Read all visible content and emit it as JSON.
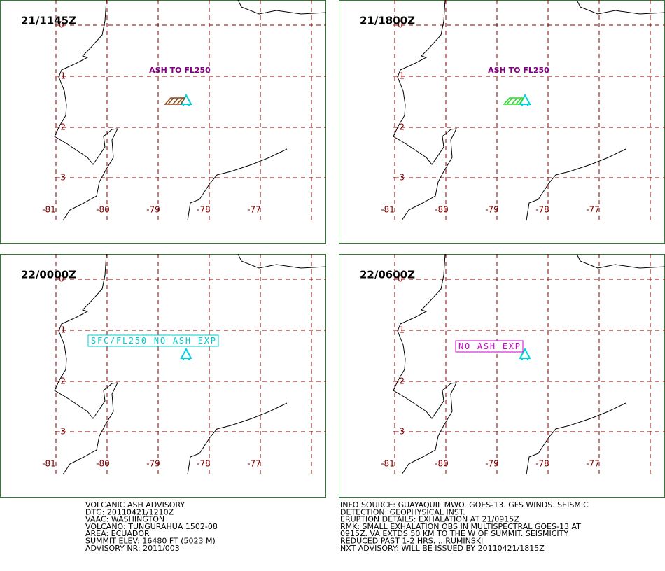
{
  "panels": [
    {
      "time": "21/1145Z",
      "annotation": "ASH TO FL250"
    },
    {
      "time": "21/1800Z",
      "annotation": "ASH TO FL250"
    },
    {
      "time": "22/0000Z",
      "annotation": "SFC/FL250 NO ASH EXP"
    },
    {
      "time": "22/0600Z",
      "annotation": "NO ASH EXP"
    }
  ],
  "latitude_labels": [
    "0",
    "-1",
    "-2",
    "-3"
  ],
  "longitude_labels": [
    "-81",
    "-80",
    "-79",
    "-78",
    "-77"
  ],
  "advisory_left": [
    "VOLCANIC ASH ADVISORY",
    "DTG: 20110421/1210Z",
    "VAAC: WASHINGTON",
    "VOLCANO: TUNGURAHUA 1502-08",
    "AREA: ECUADOR",
    "SUMMIT ELEV: 16480 FT (5023 M)",
    "ADVISORY NR: 2011/003"
  ],
  "advisory_right": [
    "INFO SOURCE: GUAYAQUIL MWO. GOES-13. GFS WINDS. SEISMIC",
    "DETECTION. GEOPHYSICAL INST.",
    "ERUPTION DETAILS: EXHALATION AT 21/0915Z",
    "RMK: SMALL EXHALATION OBS IN MULTISPECTRAL GOES-13 AT",
    "0915Z. VA EXTDS 50 KM TO THE W OF SUMMIT. SEISMICITY",
    "REDUCED PAST 1-2 HRS. ...RUMINSKI",
    "NXT ADVISORY: WILL BE ISSUED BY 20110421/1815Z"
  ]
}
